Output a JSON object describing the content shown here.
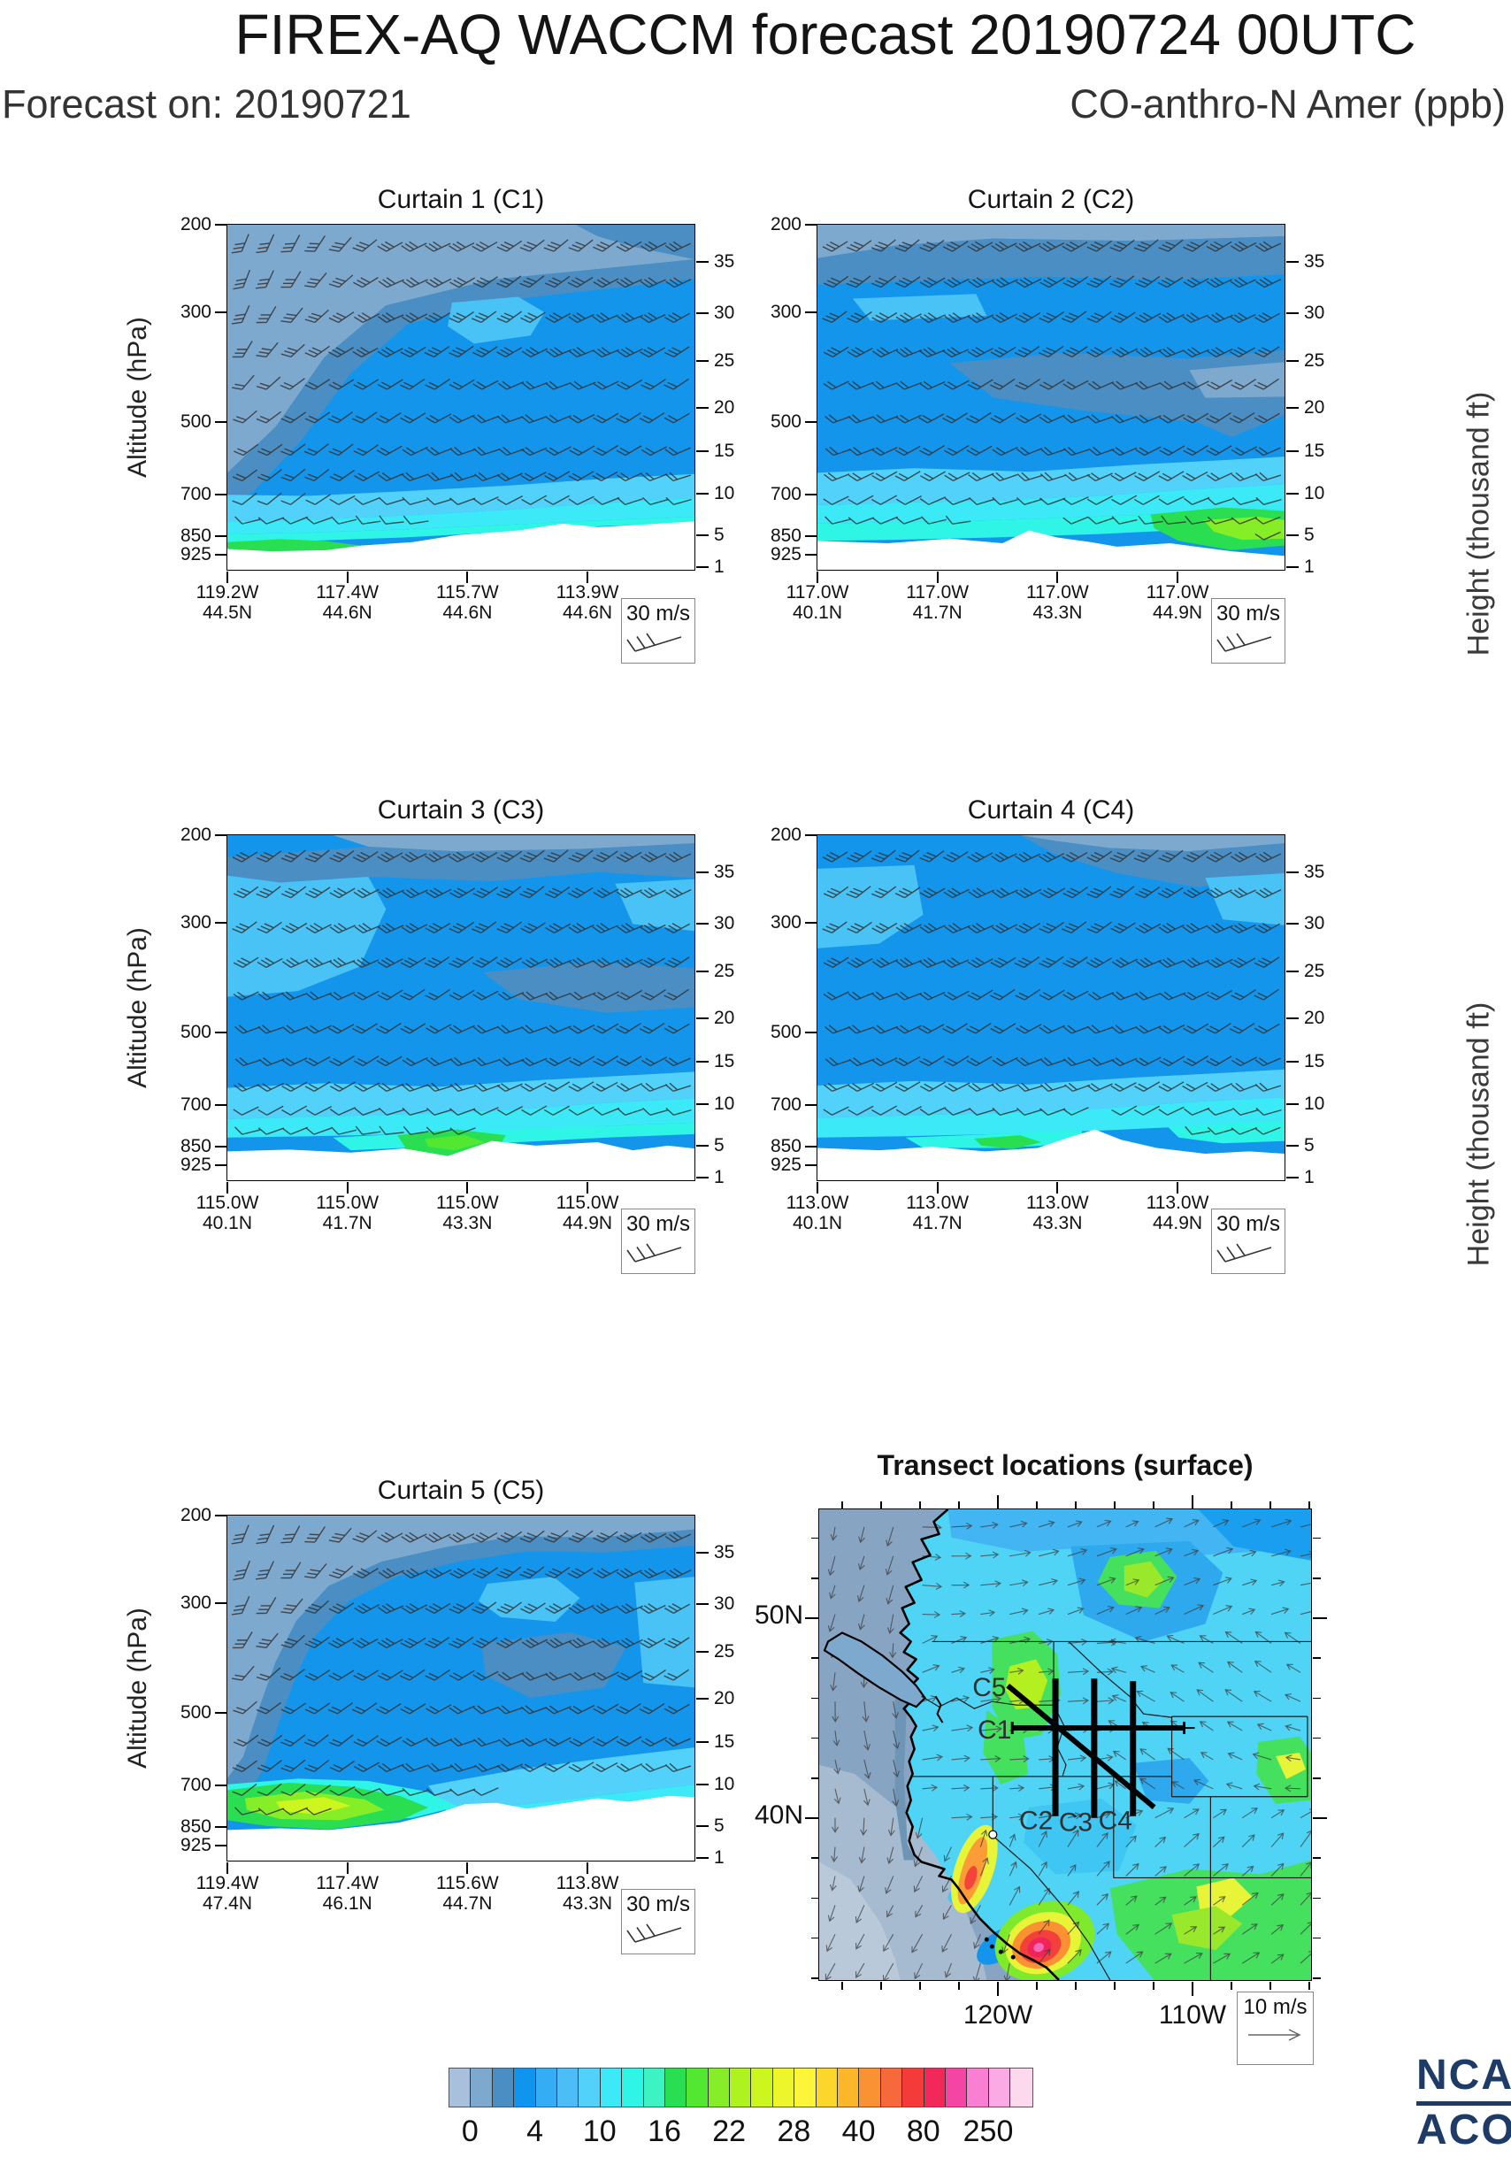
{
  "header": {
    "title": "FIREX-AQ WACCM forecast 20190724 00UTC",
    "forecast_on": "Forecast on: 20190721",
    "species": "CO-anthro-N Amer (ppb)"
  },
  "axes": {
    "y_left_label": "Altitude (hPa)",
    "y_right_label": "Height (thousand ft)",
    "pressure_ticks": [
      "200",
      "300",
      "500",
      "700",
      "850",
      "925"
    ],
    "height_ticks": [
      "35",
      "30",
      "25",
      "20",
      "15",
      "10",
      "5",
      "1"
    ]
  },
  "panels": [
    {
      "id": "C1",
      "title": "Curtain 1 (C1)",
      "barb_legend": "30 m/s",
      "lon_ticks": [
        "119.2W",
        "117.4W",
        "115.7W",
        "113.9W"
      ],
      "lat_ticks": [
        "44.5N",
        "44.6N",
        "44.6N",
        "44.6N"
      ]
    },
    {
      "id": "C2",
      "title": "Curtain 2 (C2)",
      "barb_legend": "30 m/s",
      "lon_ticks": [
        "117.0W",
        "117.0W",
        "117.0W",
        "117.0W"
      ],
      "lat_ticks": [
        "40.1N",
        "41.7N",
        "43.3N",
        "44.9N"
      ]
    },
    {
      "id": "C3",
      "title": "Curtain 3 (C3)",
      "barb_legend": "30 m/s",
      "lon_ticks": [
        "115.0W",
        "115.0W",
        "115.0W",
        "115.0W"
      ],
      "lat_ticks": [
        "40.1N",
        "41.7N",
        "43.3N",
        "44.9N"
      ]
    },
    {
      "id": "C4",
      "title": "Curtain 4 (C4)",
      "barb_legend": "30 m/s",
      "lon_ticks": [
        "113.0W",
        "113.0W",
        "113.0W",
        "113.0W"
      ],
      "lat_ticks": [
        "40.1N",
        "41.7N",
        "43.3N",
        "44.9N"
      ]
    },
    {
      "id": "C5",
      "title": "Curtain 5 (C5)",
      "barb_legend": "30 m/s",
      "lon_ticks": [
        "119.4W",
        "117.4W",
        "115.6W",
        "113.8W"
      ],
      "lat_ticks": [
        "47.4N",
        "46.1N",
        "44.7N",
        "43.3N"
      ]
    }
  ],
  "map": {
    "title": "Transect locations (surface)",
    "lat_ticks": [
      "50N",
      "40N"
    ],
    "lon_ticks": [
      "120W",
      "110W"
    ],
    "transect_labels": [
      "C5",
      "C1",
      "C2",
      "C3",
      "C4"
    ],
    "arrow_legend": "10 m/s"
  },
  "colorbar": {
    "labels": [
      "0",
      "4",
      "10",
      "16",
      "22",
      "28",
      "40",
      "80",
      "250"
    ],
    "colors": [
      "#a9c0dc",
      "#7ea9cf",
      "#4a8ec3",
      "#1095ef",
      "#35adf5",
      "#4cbdf7",
      "#52d2fa",
      "#3ce9f7",
      "#2ef5e5",
      "#3df3c3",
      "#2ade52",
      "#52e832",
      "#86ee27",
      "#aef21f",
      "#cdf51e",
      "#ecf62b",
      "#fdf53a",
      "#fdd62c",
      "#fcb62a",
      "#fa9132",
      "#f7693a",
      "#f43b3a",
      "#f2285a",
      "#f545a4",
      "#f87fd2",
      "#fbaae4",
      "#fdd9ee"
    ]
  },
  "logo": {
    "line1": "NCAR",
    "line2": "ACOM",
    "color": "#1d3b66"
  },
  "chart_data": {
    "type": "heatmap",
    "title": "FIREX-AQ WACCM forecast 20190724 00UTC",
    "subtitle": "Forecast on: 20190721",
    "variable": "CO-anthro-N Amer (ppb)",
    "colorbar_levels_ppb": [
      0,
      4,
      10,
      16,
      22,
      28,
      40,
      80,
      250
    ],
    "legend_position": "bottom",
    "grid": false,
    "panels": [
      {
        "name": "Curtain 1 (C1)",
        "type": "curtain cross-section",
        "x_lon": [
          "119.2W",
          "117.4W",
          "115.7W",
          "113.9W"
        ],
        "x_lat": [
          "44.5N",
          "44.6N",
          "44.6N",
          "44.6N"
        ],
        "y_pressure_hPa": [
          200,
          300,
          500,
          700,
          850,
          925
        ],
        "y2_height_kft": [
          35,
          30,
          25,
          20,
          15,
          10,
          5,
          1
        ],
        "wind_barb_reference": "30 m/s"
      },
      {
        "name": "Curtain 2 (C2)",
        "type": "curtain cross-section",
        "x_lon": [
          "117.0W",
          "117.0W",
          "117.0W",
          "117.0W"
        ],
        "x_lat": [
          "40.1N",
          "41.7N",
          "43.3N",
          "44.9N"
        ],
        "y_pressure_hPa": [
          200,
          300,
          500,
          700,
          850,
          925
        ],
        "y2_height_kft": [
          35,
          30,
          25,
          20,
          15,
          10,
          5,
          1
        ],
        "wind_barb_reference": "30 m/s"
      },
      {
        "name": "Curtain 3 (C3)",
        "type": "curtain cross-section",
        "x_lon": [
          "115.0W",
          "115.0W",
          "115.0W",
          "115.0W"
        ],
        "x_lat": [
          "40.1N",
          "41.7N",
          "43.3N",
          "44.9N"
        ],
        "y_pressure_hPa": [
          200,
          300,
          500,
          700,
          850,
          925
        ],
        "y2_height_kft": [
          35,
          30,
          25,
          20,
          15,
          10,
          5,
          1
        ],
        "wind_barb_reference": "30 m/s"
      },
      {
        "name": "Curtain 4 (C4)",
        "type": "curtain cross-section",
        "x_lon": [
          "113.0W",
          "113.0W",
          "113.0W",
          "113.0W"
        ],
        "x_lat": [
          "40.1N",
          "41.7N",
          "43.3N",
          "44.9N"
        ],
        "y_pressure_hPa": [
          200,
          300,
          500,
          700,
          850,
          925
        ],
        "y2_height_kft": [
          35,
          30,
          25,
          20,
          15,
          10,
          5,
          1
        ],
        "wind_barb_reference": "30 m/s"
      },
      {
        "name": "Curtain 5 (C5)",
        "type": "curtain cross-section",
        "x_lon": [
          "119.4W",
          "117.4W",
          "115.6W",
          "113.8W"
        ],
        "x_lat": [
          "47.4N",
          "46.1N",
          "44.7N",
          "43.3N"
        ],
        "y_pressure_hPa": [
          200,
          300,
          500,
          700,
          850,
          925
        ],
        "y2_height_kft": [
          35,
          30,
          25,
          20,
          15,
          10,
          5,
          1
        ],
        "wind_barb_reference": "30 m/s"
      },
      {
        "name": "Transect locations (surface)",
        "type": "map",
        "y_lat": [
          "50N",
          "40N"
        ],
        "x_lon": [
          "120W",
          "110W"
        ],
        "transects": [
          "C1",
          "C2",
          "C3",
          "C4",
          "C5"
        ],
        "wind_vector_reference": "10 m/s"
      }
    ]
  }
}
